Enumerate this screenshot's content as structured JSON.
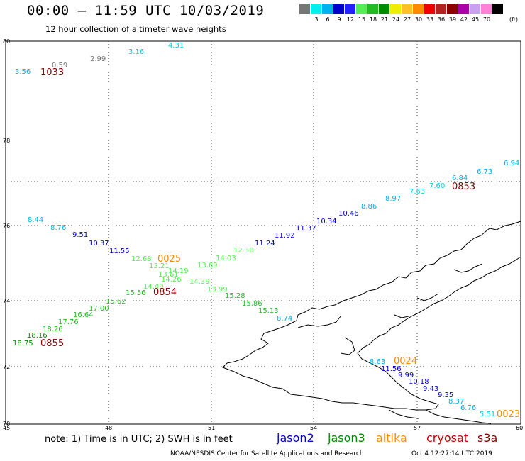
{
  "header": {
    "title": "00:00 — 11:59 UTC 10/03/2019",
    "subtitle": "12 hour collection of altimeter wave heights"
  },
  "legend": {
    "unit": "(ft)",
    "items": [
      {
        "label": "",
        "color": "#777777"
      },
      {
        "label": "3",
        "color": "#00eeee"
      },
      {
        "label": "6",
        "color": "#00b2ee"
      },
      {
        "label": "9",
        "color": "#0000cd"
      },
      {
        "label": "12",
        "color": "#2222ff"
      },
      {
        "label": "15",
        "color": "#55ee55"
      },
      {
        "label": "18",
        "color": "#22bb22"
      },
      {
        "label": "21",
        "color": "#008b00"
      },
      {
        "label": "24",
        "color": "#eeee00"
      },
      {
        "label": "27",
        "color": "#ffc125"
      },
      {
        "label": "30",
        "color": "#ff8c00"
      },
      {
        "label": "33",
        "color": "#ee0000"
      },
      {
        "label": "36",
        "color": "#b22222"
      },
      {
        "label": "39",
        "color": "#8b0000"
      },
      {
        "label": "42",
        "color": "#aa00aa"
      },
      {
        "label": "45",
        "color": "#c8a2f0"
      },
      {
        "label": "70",
        "color": "#ff82d4"
      },
      {
        "label": "",
        "color": "#000000"
      }
    ]
  },
  "axes": {
    "x_labels": [
      "45",
      "48",
      "51",
      "54",
      "57",
      "60"
    ],
    "y_labels": [
      "70",
      "72",
      "74",
      "76",
      "78",
      "80"
    ]
  },
  "points": [
    {
      "text": "3.56",
      "color": "#00b2ee"
    },
    {
      "text": "0.59",
      "color": "#777777"
    },
    {
      "text": "2.99",
      "color": "#777777"
    },
    {
      "text": "3.16",
      "color": "#00d0e0"
    },
    {
      "text": "4.31",
      "color": "#00d0e0"
    },
    {
      "text": "8.44",
      "color": "#00b2ee"
    },
    {
      "text": "8.76",
      "color": "#00b2ee"
    },
    {
      "text": "9.51",
      "color": "#0000cd"
    },
    {
      "text": "10.37",
      "color": "#0000cd"
    },
    {
      "text": "11.55",
      "color": "#0000cd"
    },
    {
      "text": "12.68",
      "color": "#55ee55"
    },
    {
      "text": "13.21",
      "color": "#55ee55"
    },
    {
      "text": "14.19",
      "color": "#55ee55"
    },
    {
      "text": "13.61",
      "color": "#55ee55"
    },
    {
      "text": "14.26",
      "color": "#55ee55"
    },
    {
      "text": "14.49",
      "color": "#55ee55"
    },
    {
      "text": "15.56",
      "color": "#22bb22"
    },
    {
      "text": "15.62",
      "color": "#22bb22"
    },
    {
      "text": "17.00",
      "color": "#22bb22"
    },
    {
      "text": "16.64",
      "color": "#22bb22"
    },
    {
      "text": "17.76",
      "color": "#22bb22"
    },
    {
      "text": "18.26",
      "color": "#22bb22"
    },
    {
      "text": "18.16",
      "color": "#008b00"
    },
    {
      "text": "18.75",
      "color": "#008b00"
    },
    {
      "text": "13.69",
      "color": "#55ee55"
    },
    {
      "text": "14.03",
      "color": "#55ee55"
    },
    {
      "text": "12.30",
      "color": "#55ee55"
    },
    {
      "text": "14.39",
      "color": "#55ee55"
    },
    {
      "text": "13.99",
      "color": "#55ee55"
    },
    {
      "text": "15.28",
      "color": "#22bb22"
    },
    {
      "text": "15.86",
      "color": "#22bb22"
    },
    {
      "text": "15.13",
      "color": "#22bb22"
    },
    {
      "text": "8.74",
      "color": "#00b2ee"
    },
    {
      "text": "11.24",
      "color": "#0000cd"
    },
    {
      "text": "11.92",
      "color": "#0000cd"
    },
    {
      "text": "11.37",
      "color": "#0000cd"
    },
    {
      "text": "10.34",
      "color": "#0000cd"
    },
    {
      "text": "10.46",
      "color": "#0000cd"
    },
    {
      "text": "8.86",
      "color": "#00b2ee"
    },
    {
      "text": "8.97",
      "color": "#00b2ee"
    },
    {
      "text": "7.63",
      "color": "#00d0e0"
    },
    {
      "text": "7.60",
      "color": "#00d0e0"
    },
    {
      "text": "6.84",
      "color": "#00b2ee"
    },
    {
      "text": "6.73",
      "color": "#00b2ee"
    },
    {
      "text": "6.94",
      "color": "#00b2ee"
    },
    {
      "text": "8.63",
      "color": "#00b2ee"
    },
    {
      "text": "11.56",
      "color": "#0000cd"
    },
    {
      "text": "9.99",
      "color": "#0000cd"
    },
    {
      "text": "10.18",
      "color": "#0000cd"
    },
    {
      "text": "9.43",
      "color": "#0000cd"
    },
    {
      "text": "9.35",
      "color": "#0000cd"
    },
    {
      "text": "8.37",
      "color": "#00b2ee"
    },
    {
      "text": "6.76",
      "color": "#00b2ee"
    },
    {
      "text": "5.51",
      "color": "#00d0e0"
    }
  ],
  "time_labels": [
    {
      "text": "1033",
      "color": "#8b0000"
    },
    {
      "text": "0025",
      "color": "#ff8c00"
    },
    {
      "text": "0854",
      "color": "#8b0000"
    },
    {
      "text": "0855",
      "color": "#8b0000"
    },
    {
      "text": "0853",
      "color": "#8b0000"
    },
    {
      "text": "0024",
      "color": "#ff8c00"
    },
    {
      "text": "0023",
      "color": "#ff8c00"
    }
  ],
  "footer": {
    "note": "note:  1) Time is in UTC;  2) SWH is in feet",
    "satellites": [
      {
        "name": "jason2",
        "color": "#0000cd"
      },
      {
        "name": "jason3",
        "color": "#008b00"
      },
      {
        "name": "altika",
        "color": "#ff8c00"
      },
      {
        "name": "cryosat",
        "color": "#cc0000"
      },
      {
        "name": "s3a",
        "color": "#8b0000"
      }
    ],
    "credit": "NOAA/NESDIS Center for Satellite Applications and Research",
    "timestamp": "Oct  4 12:27:14 UTC 2019"
  }
}
